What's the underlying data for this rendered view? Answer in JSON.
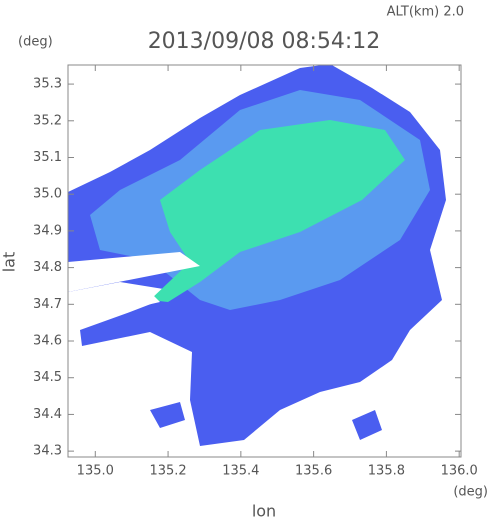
{
  "chart_data": {
    "type": "radar-map",
    "title": "2013/09/08 08:54:12",
    "altitude_label": "ALT(km) 2.0",
    "y_unit": "(deg)",
    "x_unit": "(deg)",
    "xlabel": "lon",
    "ylabel": "lat",
    "xlim": [
      134.925,
      136.005
    ],
    "ylim": [
      34.284,
      35.352
    ],
    "xticks": [
      {
        "value": 135.0,
        "label": "135.0"
      },
      135.2,
      135.4,
      135.6,
      135.8,
      {
        "value": 136.0,
        "label": "136.0"
      }
    ],
    "yticks": [
      34.3,
      34.4,
      34.5,
      34.6,
      34.7,
      34.8,
      34.9,
      {
        "value": 35.0,
        "label": "35.0"
      },
      35.1,
      35.2,
      35.3
    ]
  }
}
